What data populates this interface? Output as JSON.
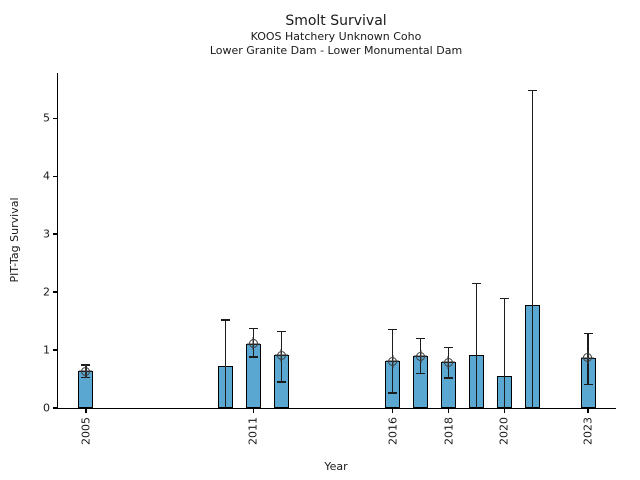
{
  "chart_data": {
    "type": "bar",
    "title": "Smolt Survival",
    "subtitle1": "KOOS Hatchery Unknown Coho",
    "subtitle2": "Lower Granite Dam - Lower Monumental Dam",
    "xlabel": "Year",
    "ylabel": "PIT-Tag Survival",
    "xlim": [
      2004,
      2024
    ],
    "ylim": [
      0,
      5.78
    ],
    "yticks": [
      0,
      1,
      2,
      3,
      4,
      5
    ],
    "xticks": [
      2005,
      2011,
      2016,
      2018,
      2020,
      2023
    ],
    "grid": false,
    "legend": "none",
    "bar_color": "#5aa7d1",
    "bar_edge_color": "#000000",
    "error_color": "#1c1c1c",
    "marker_color": "#3c3c3c",
    "bar_width_years": 0.54,
    "series": [
      {
        "name": "PIT-Tag Survival",
        "points": [
          {
            "year": 2005,
            "value": 0.64,
            "err_low": 0.53,
            "err_high": 0.74,
            "marker": true
          },
          {
            "year": 2010,
            "value": 0.72,
            "err_low": 0.0,
            "err_high": 1.52,
            "marker": false
          },
          {
            "year": 2011,
            "value": 1.11,
            "err_low": 0.88,
            "err_high": 1.37,
            "marker": true
          },
          {
            "year": 2012,
            "value": 0.91,
            "err_low": 0.45,
            "err_high": 1.32,
            "marker": true
          },
          {
            "year": 2016,
            "value": 0.81,
            "err_low": 0.26,
            "err_high": 1.36,
            "marker": true
          },
          {
            "year": 2017,
            "value": 0.9,
            "err_low": 0.59,
            "err_high": 1.2,
            "marker": true
          },
          {
            "year": 2018,
            "value": 0.79,
            "err_low": 0.52,
            "err_high": 1.04,
            "marker": true
          },
          {
            "year": 2019,
            "value": 0.91,
            "err_low": 0.0,
            "err_high": 2.15,
            "marker": false
          },
          {
            "year": 2020,
            "value": 0.55,
            "err_low": 0.0,
            "err_high": 1.89,
            "marker": false
          },
          {
            "year": 2021,
            "value": 1.77,
            "err_low": 0.0,
            "err_high": 5.48,
            "marker": false
          },
          {
            "year": 2023,
            "value": 0.87,
            "err_low": 0.41,
            "err_high": 1.29,
            "marker": true
          }
        ]
      }
    ]
  }
}
